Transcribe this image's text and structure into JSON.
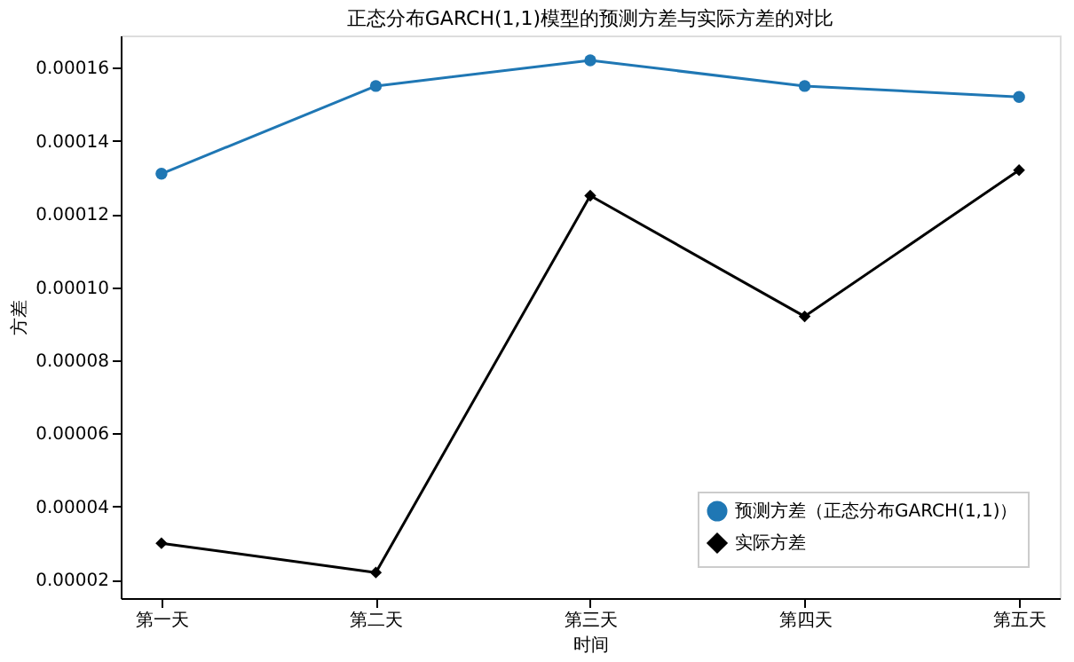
{
  "chart_data": {
    "type": "line",
    "title": "正态分布GARCH(1,1)模型的预测方差与实际方差的对比",
    "xlabel": "时间",
    "ylabel": "方差",
    "categories": [
      "第一天",
      "第二天",
      "第三天",
      "第四天",
      "第五天"
    ],
    "series": [
      {
        "name": "预测方差（正态分布GARCH(1,1)）",
        "color": "#1f77b4",
        "marker": "circle",
        "values": [
          0.000131,
          0.000155,
          0.000162,
          0.000155,
          0.000152
        ]
      },
      {
        "name": "实际方差",
        "color": "#000000",
        "marker": "diamond",
        "values": [
          3e-05,
          2.2e-05,
          0.000125,
          9.2e-05,
          0.000132
        ]
      }
    ],
    "ylim": [
      1.5e-05,
      0.0001688
    ],
    "yticks": [
      {
        "value": 2e-05,
        "label": "0.00002"
      },
      {
        "value": 4e-05,
        "label": "0.00004"
      },
      {
        "value": 6e-05,
        "label": "0.00006"
      },
      {
        "value": 8e-05,
        "label": "0.00008"
      },
      {
        "value": 0.0001,
        "label": "0.00010"
      },
      {
        "value": 0.00012,
        "label": "0.00012"
      },
      {
        "value": 0.00014,
        "label": "0.00014"
      },
      {
        "value": 0.00016,
        "label": "0.00016"
      }
    ],
    "grid": false,
    "legend": "bottom right",
    "line_style": "solid"
  }
}
